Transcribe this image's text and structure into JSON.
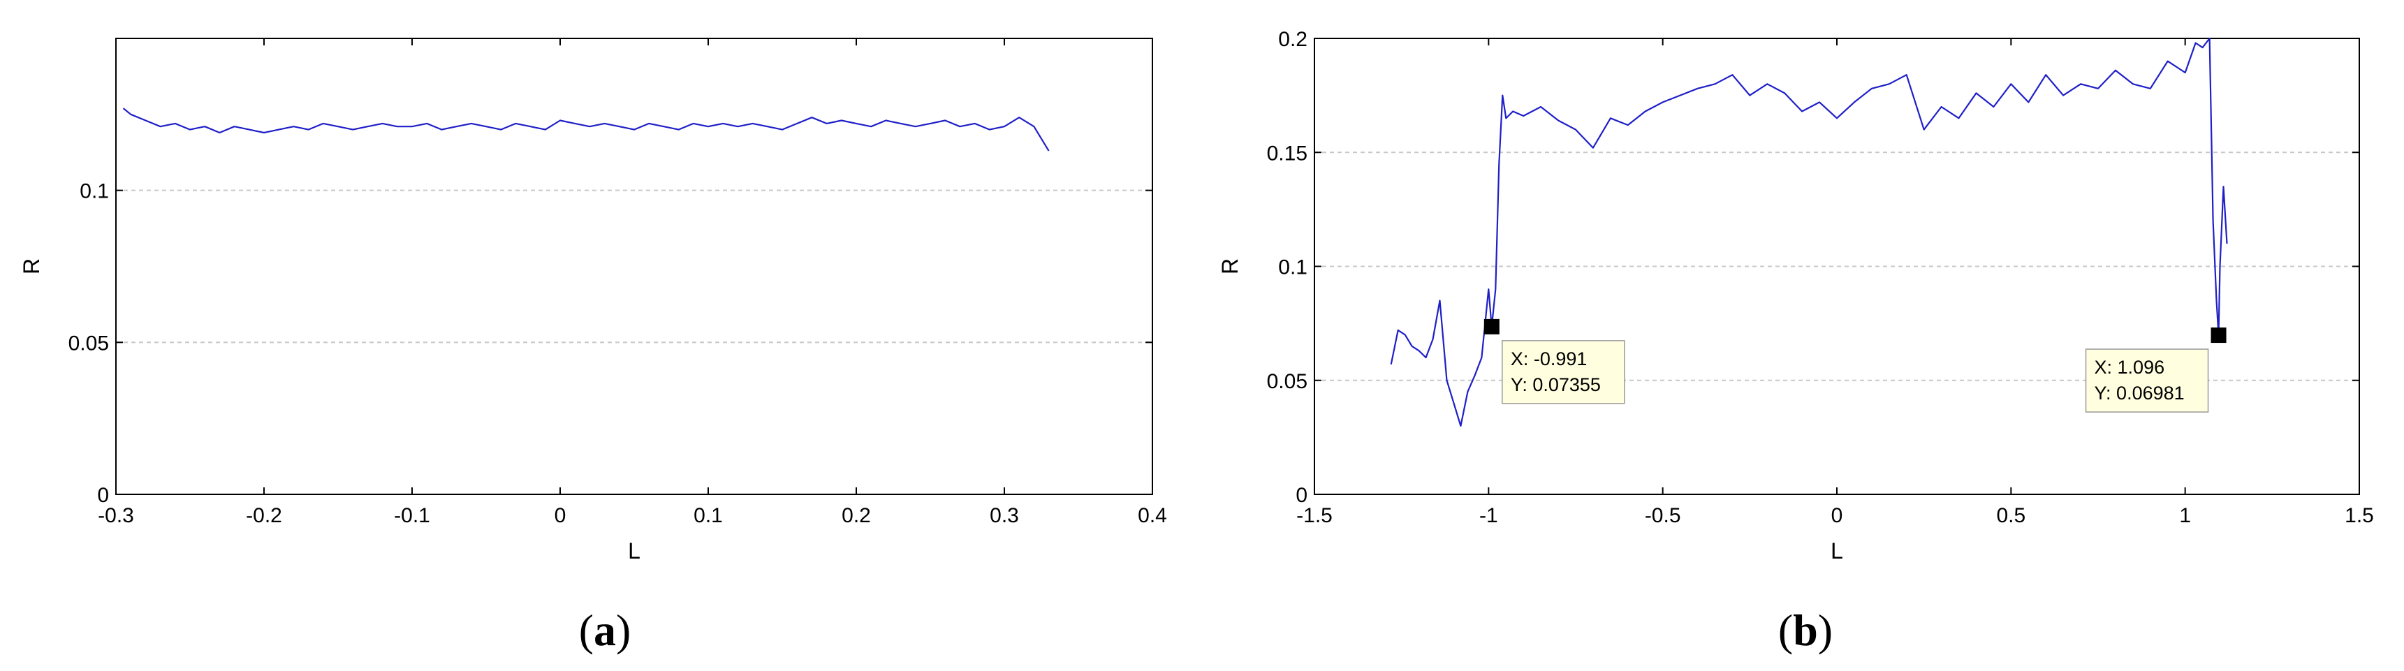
{
  "chart_data": [
    {
      "type": "line",
      "panel_label": {
        "open": "(",
        "letter": "a",
        "close": ")"
      },
      "xlabel": "L",
      "ylabel": "R",
      "xlim": [
        -0.3,
        0.4
      ],
      "ylim": [
        0,
        0.15
      ],
      "xticks": [
        "-0.3",
        "-0.2",
        "-0.1",
        "0",
        "0.1",
        "0.2",
        "0.3",
        "0.4"
      ],
      "xtick_values": [
        -0.3,
        -0.2,
        -0.1,
        0,
        0.1,
        0.2,
        0.3,
        0.4
      ],
      "yticks": [
        "0",
        "0.05",
        "0.1"
      ],
      "ytick_values": [
        0,
        0.05,
        0.1
      ],
      "grid": "y-dashed",
      "color": "#1f1fc8",
      "series": [
        {
          "x": [
            -0.295,
            -0.29,
            -0.28,
            -0.27,
            -0.26,
            -0.25,
            -0.24,
            -0.23,
            -0.22,
            -0.21,
            -0.2,
            -0.19,
            -0.18,
            -0.17,
            -0.16,
            -0.15,
            -0.14,
            -0.13,
            -0.12,
            -0.11,
            -0.1,
            -0.09,
            -0.08,
            -0.07,
            -0.06,
            -0.05,
            -0.04,
            -0.03,
            -0.02,
            -0.01,
            0,
            0.01,
            0.02,
            0.03,
            0.04,
            0.05,
            0.06,
            0.07,
            0.08,
            0.09,
            0.1,
            0.11,
            0.12,
            0.13,
            0.14,
            0.15,
            0.16,
            0.17,
            0.18,
            0.19,
            0.2,
            0.21,
            0.22,
            0.23,
            0.24,
            0.25,
            0.26,
            0.27,
            0.28,
            0.29,
            0.3,
            0.31,
            0.32,
            0.33
          ],
          "y": [
            0.127,
            0.125,
            0.123,
            0.121,
            0.122,
            0.12,
            0.121,
            0.119,
            0.121,
            0.12,
            0.119,
            0.12,
            0.121,
            0.12,
            0.122,
            0.121,
            0.12,
            0.121,
            0.122,
            0.121,
            0.121,
            0.122,
            0.12,
            0.121,
            0.122,
            0.121,
            0.12,
            0.122,
            0.121,
            0.12,
            0.123,
            0.122,
            0.121,
            0.122,
            0.121,
            0.12,
            0.122,
            0.121,
            0.12,
            0.122,
            0.121,
            0.122,
            0.121,
            0.122,
            0.121,
            0.12,
            0.122,
            0.124,
            0.122,
            0.123,
            0.122,
            0.121,
            0.123,
            0.122,
            0.121,
            0.122,
            0.123,
            0.121,
            0.122,
            0.12,
            0.121,
            0.124,
            0.121,
            0.113
          ]
        }
      ]
    },
    {
      "type": "line",
      "panel_label": {
        "open": "(",
        "letter": "b",
        "close": ")"
      },
      "xlabel": "L",
      "ylabel": "R",
      "xlim": [
        -1.5,
        1.5
      ],
      "ylim": [
        0,
        0.2
      ],
      "xticks": [
        "-1.5",
        "-1",
        "-0.5",
        "0",
        "0.5",
        "1",
        "1.5"
      ],
      "xtick_values": [
        -1.5,
        -1,
        -0.5,
        0,
        0.5,
        1,
        1.5
      ],
      "yticks": [
        "0",
        "0.05",
        "0.1",
        "0.15",
        "0.2"
      ],
      "ytick_values": [
        0,
        0.05,
        0.1,
        0.15,
        0.2
      ],
      "grid": "y-dashed",
      "color": "#1f1fc8",
      "series": [
        {
          "x": [
            -1.28,
            -1.26,
            -1.24,
            -1.22,
            -1.2,
            -1.18,
            -1.16,
            -1.14,
            -1.12,
            -1.1,
            -1.08,
            -1.06,
            -1.04,
            -1.02,
            -1.0,
            -0.991,
            -0.98,
            -0.97,
            -0.96,
            -0.95,
            -0.93,
            -0.9,
            -0.85,
            -0.8,
            -0.75,
            -0.7,
            -0.65,
            -0.6,
            -0.55,
            -0.5,
            -0.45,
            -0.4,
            -0.35,
            -0.3,
            -0.25,
            -0.2,
            -0.15,
            -0.1,
            -0.05,
            0,
            0.05,
            0.1,
            0.15,
            0.2,
            0.25,
            0.3,
            0.35,
            0.4,
            0.45,
            0.5,
            0.55,
            0.6,
            0.65,
            0.7,
            0.75,
            0.8,
            0.85,
            0.9,
            0.95,
            1.0,
            1.03,
            1.05,
            1.07,
            1.08,
            1.09,
            1.096,
            1.1,
            1.11,
            1.12
          ],
          "y": [
            0.057,
            0.072,
            0.07,
            0.065,
            0.063,
            0.06,
            0.068,
            0.085,
            0.05,
            0.04,
            0.03,
            0.045,
            0.052,
            0.06,
            0.09,
            0.07355,
            0.09,
            0.145,
            0.175,
            0.165,
            0.168,
            0.166,
            0.17,
            0.164,
            0.16,
            0.152,
            0.165,
            0.162,
            0.168,
            0.172,
            0.175,
            0.178,
            0.18,
            0.184,
            0.175,
            0.18,
            0.176,
            0.168,
            0.172,
            0.165,
            0.172,
            0.178,
            0.18,
            0.184,
            0.16,
            0.17,
            0.165,
            0.176,
            0.17,
            0.18,
            0.172,
            0.184,
            0.175,
            0.18,
            0.178,
            0.186,
            0.18,
            0.178,
            0.19,
            0.185,
            0.198,
            0.196,
            0.2,
            0.12,
            0.085,
            0.06981,
            0.1,
            0.135,
            0.11
          ]
        }
      ],
      "datatips": [
        {
          "x": -0.991,
          "y": 0.07355,
          "label_x": "X: -0.991",
          "label_y": "Y: 0.07355",
          "side": "right"
        },
        {
          "x": 1.096,
          "y": 0.06981,
          "label_x": "X: 1.096",
          "label_y": "Y: 0.06981",
          "side": "left"
        }
      ]
    }
  ]
}
